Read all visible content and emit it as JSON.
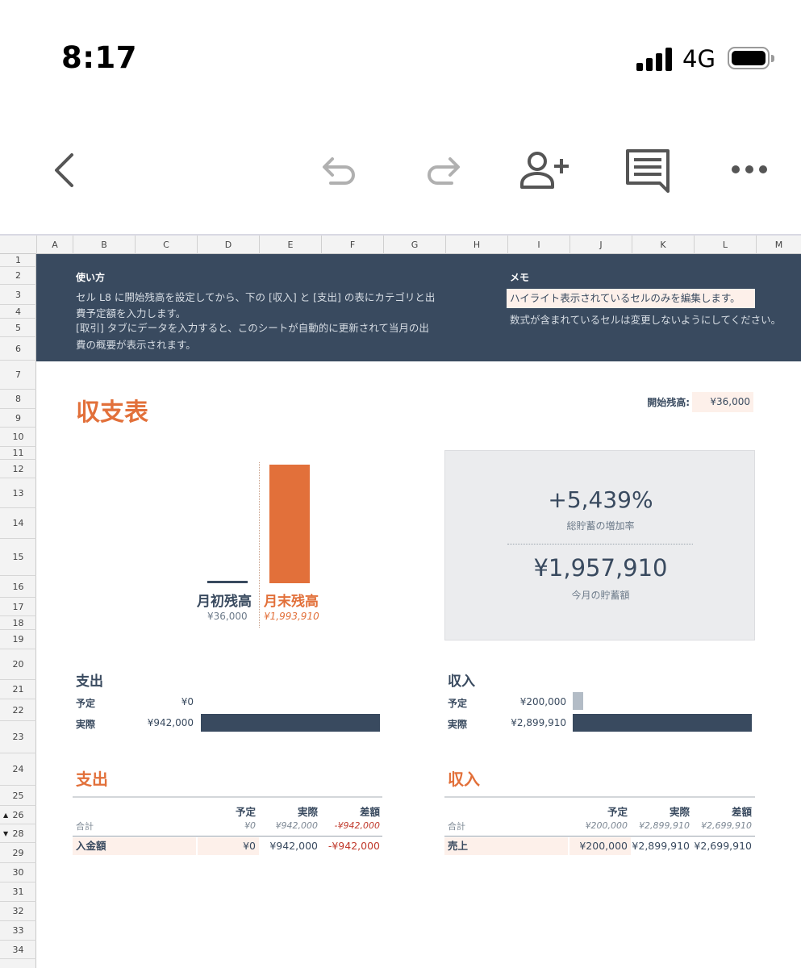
{
  "status": {
    "time": "8:17",
    "network": "4G"
  },
  "toolbar": {
    "back": "chevron-left-icon",
    "undo": "undo-icon",
    "redo": "redo-icon",
    "share": "add-person-icon",
    "comment": "comment-icon",
    "more": "more-icon"
  },
  "columns": [
    "A",
    "B",
    "C",
    "D",
    "E",
    "F",
    "G",
    "H",
    "I",
    "J",
    "K",
    "L",
    "M"
  ],
  "rows": [
    "1",
    "2",
    "3",
    "4",
    "5",
    "6",
    "7",
    "8",
    "9",
    "10",
    "11",
    "12",
    "13",
    "14",
    "15",
    "16",
    "17",
    "18",
    "19",
    "20",
    "21",
    "22",
    "23",
    "24",
    "25",
    "26",
    "28",
    "29",
    "30",
    "31",
    "32",
    "33",
    "34"
  ],
  "banner": {
    "howto_title": "使い方",
    "howto_line1": "セル L8 に開始残高を設定してから、下の [収入] と [支出] の表にカテゴリと出",
    "howto_line2": "費予定額を入力します。",
    "howto_line3": "[取引] タブにデータを入力すると、このシートが自動的に更新されて当月の出",
    "howto_line4": "費の概要が表示されます。",
    "memo_title": "メモ",
    "memo_highlight": "ハイライト表示されているセルのみを編集します。",
    "memo_line2": "数式が含まれているセルは変更しないようにしてください。"
  },
  "title": "収支表",
  "start_balance": {
    "label": "開始残高:",
    "value": "¥36,000"
  },
  "balance_chart": {
    "opening_label": "月初残高",
    "opening_value": "¥36,000",
    "closing_label": "月末残高",
    "closing_value": "¥1,993,910"
  },
  "summary": {
    "growth": "+5,439%",
    "growth_label": "総貯蓄の増加率",
    "savings": "¥1,957,910",
    "savings_label": "今月の貯蓄額"
  },
  "expense_chart": {
    "title": "支出",
    "planned_label": "予定",
    "planned_value": "¥0",
    "actual_label": "実際",
    "actual_value": "¥942,000"
  },
  "income_chart": {
    "title": "収入",
    "planned_label": "予定",
    "planned_value": "¥200,000",
    "actual_label": "実際",
    "actual_value": "¥2,899,910"
  },
  "expense_table": {
    "title": "支出",
    "headers": [
      "予定",
      "実際",
      "差額"
    ],
    "total_label": "合計",
    "totals": [
      "¥0",
      "¥942,000",
      "-¥942,000"
    ],
    "rows": [
      {
        "label": "入金額",
        "planned": "¥0",
        "actual": "¥942,000",
        "diff": "-¥942,000"
      }
    ]
  },
  "income_table": {
    "title": "収入",
    "headers": [
      "予定",
      "実際",
      "差額"
    ],
    "total_label": "合計",
    "totals": [
      "¥200,000",
      "¥2,899,910",
      "¥2,699,910"
    ],
    "rows": [
      {
        "label": "売上",
        "planned": "¥200,000",
        "actual": "¥2,899,910",
        "diff": "¥2,699,910"
      }
    ]
  },
  "chart_data": [
    {
      "type": "bar",
      "categories": [
        "月初残高",
        "月末残高"
      ],
      "values": [
        36000,
        1993910
      ]
    },
    {
      "type": "bar",
      "title": "支出",
      "categories": [
        "予定",
        "実際"
      ],
      "values": [
        0,
        942000
      ]
    },
    {
      "type": "bar",
      "title": "収入",
      "categories": [
        "予定",
        "実際"
      ],
      "values": [
        200000,
        2899910
      ]
    }
  ],
  "colors": {
    "navy": "#394a5f",
    "orange": "#e2703a",
    "highlight": "#fdf0ea",
    "grey_bar": "#b3bcc6"
  }
}
